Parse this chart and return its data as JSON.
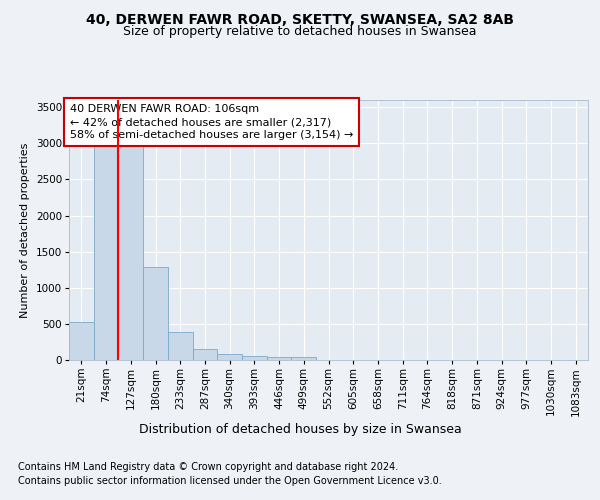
{
  "title1": "40, DERWEN FAWR ROAD, SKETTY, SWANSEA, SA2 8AB",
  "title2": "Size of property relative to detached houses in Swansea",
  "xlabel": "Distribution of detached houses by size in Swansea",
  "ylabel": "Number of detached properties",
  "categories": [
    "21sqm",
    "74sqm",
    "127sqm",
    "180sqm",
    "233sqm",
    "287sqm",
    "340sqm",
    "393sqm",
    "446sqm",
    "499sqm",
    "552sqm",
    "605sqm",
    "658sqm",
    "711sqm",
    "764sqm",
    "818sqm",
    "871sqm",
    "924sqm",
    "977sqm",
    "1030sqm",
    "1083sqm"
  ],
  "values": [
    530,
    3000,
    3000,
    1290,
    390,
    155,
    85,
    55,
    45,
    40,
    0,
    0,
    0,
    0,
    0,
    0,
    0,
    0,
    0,
    0,
    0
  ],
  "bar_color": "#c8d8e8",
  "bar_edge_color": "#7aaaca",
  "red_line_x": 1.5,
  "annotation_text": "40 DERWEN FAWR ROAD: 106sqm\n← 42% of detached houses are smaller (2,317)\n58% of semi-detached houses are larger (3,154) →",
  "annotation_box_color": "#ffffff",
  "annotation_box_edge": "#cc0000",
  "footer1": "Contains HM Land Registry data © Crown copyright and database right 2024.",
  "footer2": "Contains public sector information licensed under the Open Government Licence v3.0.",
  "ylim": [
    0,
    3600
  ],
  "yticks": [
    0,
    500,
    1000,
    1500,
    2000,
    2500,
    3000,
    3500
  ],
  "bg_color": "#eef2f6",
  "plot_bg_color": "#e4ebf2",
  "grid_color": "#ffffff",
  "title1_fontsize": 10,
  "title2_fontsize": 9,
  "tick_fontsize": 7.5,
  "xlabel_fontsize": 9,
  "ylabel_fontsize": 8,
  "footer_fontsize": 7,
  "annot_fontsize": 8
}
